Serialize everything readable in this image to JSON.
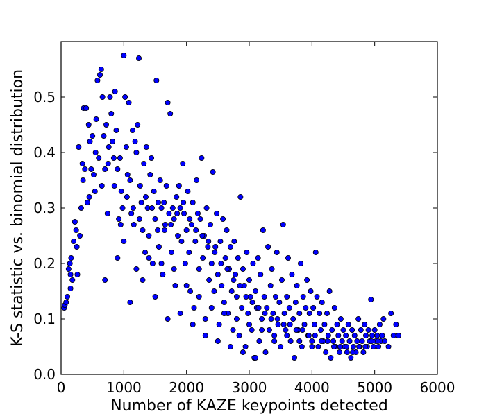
{
  "chart_data": {
    "type": "scatter",
    "title": "",
    "xlabel": "Number of KAZE keypoints detected",
    "ylabel": "K-S statistic vs. binomial distribution",
    "xlim": [
      0,
      6000
    ],
    "ylim": [
      0,
      0.6
    ],
    "xticks": [
      0,
      1000,
      2000,
      3000,
      4000,
      5000,
      6000
    ],
    "yticks": [
      0.0,
      0.1,
      0.2,
      0.3,
      0.4,
      0.5
    ],
    "xtick_labels": [
      "0",
      "1000",
      "2000",
      "3000",
      "4000",
      "5000",
      "6000"
    ],
    "ytick_labels": [
      "0.0",
      "0.1",
      "0.2",
      "0.3",
      "0.4",
      "0.5"
    ],
    "grid": false,
    "marker_color": "#0000ff",
    "marker_edge_color": "#000000",
    "points": [
      [
        50,
        0.12
      ],
      [
        60,
        0.125
      ],
      [
        80,
        0.13
      ],
      [
        100,
        0.14
      ],
      [
        120,
        0.19
      ],
      [
        140,
        0.2
      ],
      [
        150,
        0.155
      ],
      [
        160,
        0.21
      ],
      [
        180,
        0.17
      ],
      [
        200,
        0.24
      ],
      [
        220,
        0.275
      ],
      [
        240,
        0.26
      ],
      [
        260,
        0.18
      ],
      [
        280,
        0.41
      ],
      [
        300,
        0.25
      ],
      [
        320,
        0.3
      ],
      [
        340,
        0.38
      ],
      [
        360,
        0.48
      ],
      [
        380,
        0.37
      ],
      [
        400,
        0.48
      ],
      [
        420,
        0.31
      ],
      [
        440,
        0.45
      ],
      [
        460,
        0.42
      ],
      [
        480,
        0.37
      ],
      [
        500,
        0.43
      ],
      [
        520,
        0.36
      ],
      [
        540,
        0.33
      ],
      [
        560,
        0.46
      ],
      [
        580,
        0.53
      ],
      [
        600,
        0.39
      ],
      [
        620,
        0.54
      ],
      [
        640,
        0.55
      ],
      [
        660,
        0.5
      ],
      [
        680,
        0.43
      ],
      [
        700,
        0.37
      ],
      [
        720,
        0.45
      ],
      [
        740,
        0.29
      ],
      [
        760,
        0.41
      ],
      [
        780,
        0.5
      ],
      [
        800,
        0.47
      ],
      [
        820,
        0.42
      ],
      [
        840,
        0.39
      ],
      [
        860,
        0.51
      ],
      [
        880,
        0.44
      ],
      [
        900,
        0.37
      ],
      [
        920,
        0.28
      ],
      [
        940,
        0.39
      ],
      [
        960,
        0.33
      ],
      [
        980,
        0.3
      ],
      [
        1000,
        0.575
      ],
      [
        1020,
        0.5
      ],
      [
        1040,
        0.41
      ],
      [
        1060,
        0.36
      ],
      [
        1080,
        0.49
      ],
      [
        1100,
        0.35
      ],
      [
        1120,
        0.29
      ],
      [
        1140,
        0.44
      ],
      [
        1160,
        0.27
      ],
      [
        1180,
        0.42
      ],
      [
        1200,
        0.4
      ],
      [
        1220,
        0.45
      ],
      [
        1240,
        0.57
      ],
      [
        1260,
        0.34
      ],
      [
        1280,
        0.31
      ],
      [
        1300,
        0.26
      ],
      [
        1320,
        0.38
      ],
      [
        1340,
        0.22
      ],
      [
        1360,
        0.41
      ],
      [
        1380,
        0.3
      ],
      [
        1400,
        0.25
      ],
      [
        1420,
        0.36
      ],
      [
        1440,
        0.39
      ],
      [
        1460,
        0.2
      ],
      [
        1480,
        0.33
      ],
      [
        1500,
        0.28
      ],
      [
        1520,
        0.53
      ],
      [
        1540,
        0.26
      ],
      [
        1560,
        0.23
      ],
      [
        1580,
        0.35
      ],
      [
        1600,
        0.3
      ],
      [
        1620,
        0.18
      ],
      [
        1640,
        0.31
      ],
      [
        1660,
        0.27
      ],
      [
        1680,
        0.34
      ],
      [
        1700,
        0.49
      ],
      [
        1720,
        0.29
      ],
      [
        1740,
        0.47
      ],
      [
        1760,
        0.22
      ],
      [
        1780,
        0.3
      ],
      [
        1800,
        0.28
      ],
      [
        1820,
        0.16
      ],
      [
        1840,
        0.32
      ],
      [
        1860,
        0.25
      ],
      [
        1880,
        0.34
      ],
      [
        1900,
        0.3
      ],
      [
        1920,
        0.24
      ],
      [
        1940,
        0.38
      ],
      [
        1960,
        0.29
      ],
      [
        1980,
        0.2
      ],
      [
        2000,
        0.26
      ],
      [
        2020,
        0.33
      ],
      [
        2040,
        0.22
      ],
      [
        2060,
        0.15
      ],
      [
        2080,
        0.27
      ],
      [
        2100,
        0.31
      ],
      [
        2120,
        0.12
      ],
      [
        2140,
        0.24
      ],
      [
        2160,
        0.35
      ],
      [
        2180,
        0.29
      ],
      [
        2200,
        0.19
      ],
      [
        2220,
        0.28
      ],
      [
        2240,
        0.39
      ],
      [
        2260,
        0.21
      ],
      [
        2280,
        0.25
      ],
      [
        2300,
        0.1
      ],
      [
        2320,
        0.3
      ],
      [
        2340,
        0.23
      ],
      [
        2360,
        0.17
      ],
      [
        2380,
        0.27
      ],
      [
        2400,
        0.2
      ],
      [
        2420,
        0.365
      ],
      [
        2440,
        0.15
      ],
      [
        2460,
        0.23
      ],
      [
        2480,
        0.29
      ],
      [
        2500,
        0.18
      ],
      [
        2520,
        0.09
      ],
      [
        2540,
        0.24
      ],
      [
        2560,
        0.16
      ],
      [
        2580,
        0.28
      ],
      [
        2600,
        0.13
      ],
      [
        2620,
        0.21
      ],
      [
        2640,
        0.26
      ],
      [
        2660,
        0.11
      ],
      [
        2680,
        0.19
      ],
      [
        2700,
        0.23
      ],
      [
        2720,
        0.15
      ],
      [
        2740,
        0.08
      ],
      [
        2760,
        0.24
      ],
      [
        2780,
        0.18
      ],
      [
        2800,
        0.14
      ],
      [
        2820,
        0.21
      ],
      [
        2840,
        0.07
      ],
      [
        2860,
        0.32
      ],
      [
        2880,
        0.12
      ],
      [
        2900,
        0.19
      ],
      [
        2920,
        0.16
      ],
      [
        2940,
        0.05
      ],
      [
        2960,
        0.22
      ],
      [
        2980,
        0.11
      ],
      [
        3000,
        0.17
      ],
      [
        3020,
        0.14
      ],
      [
        3040,
        0.08
      ],
      [
        3060,
        0.2
      ],
      [
        3080,
        0.03
      ],
      [
        3100,
        0.15
      ],
      [
        3120,
        0.12
      ],
      [
        3140,
        0.21
      ],
      [
        3160,
        0.06
      ],
      [
        3180,
        0.18
      ],
      [
        3200,
        0.1
      ],
      [
        3220,
        0.26
      ],
      [
        3240,
        0.14
      ],
      [
        3260,
        0.04
      ],
      [
        3280,
        0.12
      ],
      [
        3300,
        0.23
      ],
      [
        3320,
        0.08
      ],
      [
        3340,
        0.16
      ],
      [
        3360,
        0.19
      ],
      [
        3380,
        0.11
      ],
      [
        3400,
        0.06
      ],
      [
        3420,
        0.14
      ],
      [
        3440,
        0.22
      ],
      [
        3460,
        0.09
      ],
      [
        3480,
        0.13
      ],
      [
        3500,
        0.05
      ],
      [
        3520,
        0.17
      ],
      [
        3540,
        0.27
      ],
      [
        3560,
        0.11
      ],
      [
        3580,
        0.08
      ],
      [
        3600,
        0.14
      ],
      [
        3620,
        0.21
      ],
      [
        3640,
        0.12
      ],
      [
        3660,
        0.06
      ],
      [
        3680,
        0.18
      ],
      [
        3700,
        0.1
      ],
      [
        3720,
        0.03
      ],
      [
        3740,
        0.13
      ],
      [
        3760,
        0.16
      ],
      [
        3780,
        0.08
      ],
      [
        3800,
        0.11
      ],
      [
        3820,
        0.2
      ],
      [
        3840,
        0.05
      ],
      [
        3860,
        0.14
      ],
      [
        3880,
        0.09
      ],
      [
        3900,
        0.12
      ],
      [
        3920,
        0.17
      ],
      [
        3940,
        0.07
      ],
      [
        3960,
        0.11
      ],
      [
        3980,
        0.15
      ],
      [
        4000,
        0.06
      ],
      [
        4020,
        0.12
      ],
      [
        4040,
        0.09
      ],
      [
        4060,
        0.22
      ],
      [
        4080,
        0.14
      ],
      [
        4100,
        0.05
      ],
      [
        4120,
        0.11
      ],
      [
        4140,
        0.08
      ],
      [
        4160,
        0.13
      ],
      [
        4180,
        0.06
      ],
      [
        4200,
        0.09
      ],
      [
        4220,
        0.04
      ],
      [
        4240,
        0.11
      ],
      [
        4260,
        0.07
      ],
      [
        4280,
        0.15
      ],
      [
        4300,
        0.03
      ],
      [
        4320,
        0.08
      ],
      [
        4340,
        0.06
      ],
      [
        4360,
        0.12
      ],
      [
        4380,
        0.05
      ],
      [
        4400,
        0.09
      ],
      [
        4420,
        0.07
      ],
      [
        4440,
        0.04
      ],
      [
        4460,
        0.1
      ],
      [
        4480,
        0.06
      ],
      [
        4500,
        0.08
      ],
      [
        4520,
        0.05
      ],
      [
        4540,
        0.07
      ],
      [
        4560,
        0.04
      ],
      [
        4580,
        0.09
      ],
      [
        4600,
        0.06
      ],
      [
        4620,
        0.03
      ],
      [
        4640,
        0.08
      ],
      [
        4660,
        0.05
      ],
      [
        4680,
        0.07
      ],
      [
        4700,
        0.04
      ],
      [
        4720,
        0.06
      ],
      [
        4740,
        0.1
      ],
      [
        4760,
        0.05
      ],
      [
        4780,
        0.08
      ],
      [
        4800,
        0.06
      ],
      [
        4820,
        0.04
      ],
      [
        4840,
        0.09
      ],
      [
        4860,
        0.07
      ],
      [
        4880,
        0.05
      ],
      [
        4900,
        0.08
      ],
      [
        4920,
        0.06
      ],
      [
        4940,
        0.135
      ],
      [
        4960,
        0.07
      ],
      [
        4980,
        0.05
      ],
      [
        5000,
        0.08
      ],
      [
        5020,
        0.06
      ],
      [
        5040,
        0.07
      ],
      [
        5060,
        0.05
      ],
      [
        5080,
        0.09
      ],
      [
        5100,
        0.06
      ],
      [
        5120,
        0.07
      ],
      [
        5140,
        0.1
      ],
      [
        5160,
        0.06
      ],
      [
        5220,
        0.05
      ],
      [
        5260,
        0.11
      ],
      [
        5300,
        0.07
      ],
      [
        5340,
        0.09
      ],
      [
        5380,
        0.07
      ],
      [
        150,
        0.18
      ],
      [
        250,
        0.23
      ],
      [
        350,
        0.35
      ],
      [
        450,
        0.32
      ],
      [
        550,
        0.4
      ],
      [
        650,
        0.34
      ],
      [
        750,
        0.38
      ],
      [
        850,
        0.34
      ],
      [
        950,
        0.27
      ],
      [
        1050,
        0.32
      ],
      [
        1150,
        0.3
      ],
      [
        1250,
        0.28
      ],
      [
        1350,
        0.32
      ],
      [
        1450,
        0.3
      ],
      [
        1550,
        0.31
      ],
      [
        1650,
        0.26
      ],
      [
        1750,
        0.27
      ],
      [
        1850,
        0.29
      ],
      [
        1950,
        0.31
      ],
      [
        2050,
        0.28
      ],
      [
        2150,
        0.26
      ],
      [
        2250,
        0.25
      ],
      [
        2350,
        0.24
      ],
      [
        2450,
        0.22
      ],
      [
        2550,
        0.2
      ],
      [
        2650,
        0.19
      ],
      [
        2750,
        0.17
      ],
      [
        2850,
        0.16
      ],
      [
        2950,
        0.14
      ],
      [
        3050,
        0.13
      ],
      [
        3150,
        0.12
      ],
      [
        3250,
        0.11
      ],
      [
        3350,
        0.1
      ],
      [
        3450,
        0.1
      ],
      [
        3550,
        0.09
      ],
      [
        3650,
        0.09
      ],
      [
        3750,
        0.08
      ],
      [
        3850,
        0.08
      ],
      [
        3950,
        0.07
      ],
      [
        4050,
        0.07
      ],
      [
        4150,
        0.06
      ],
      [
        4250,
        0.06
      ],
      [
        4350,
        0.05
      ],
      [
        4450,
        0.05
      ],
      [
        4550,
        0.05
      ],
      [
        4650,
        0.04
      ],
      [
        4750,
        0.05
      ],
      [
        4850,
        0.05
      ],
      [
        4950,
        0.06
      ],
      [
        5050,
        0.06
      ],
      [
        700,
        0.17
      ],
      [
        900,
        0.21
      ],
      [
        1100,
        0.13
      ],
      [
        1300,
        0.17
      ],
      [
        1500,
        0.14
      ],
      [
        1700,
        0.1
      ],
      [
        1900,
        0.11
      ],
      [
        2100,
        0.09
      ],
      [
        2300,
        0.07
      ],
      [
        2500,
        0.06
      ],
      [
        2700,
        0.05
      ],
      [
        2900,
        0.04
      ],
      [
        3100,
        0.03
      ],
      [
        1000,
        0.24
      ],
      [
        1200,
        0.19
      ],
      [
        1400,
        0.21
      ],
      [
        1600,
        0.2
      ],
      [
        1800,
        0.19
      ],
      [
        2000,
        0.16
      ],
      [
        2200,
        0.14
      ],
      [
        2400,
        0.12
      ],
      [
        2600,
        0.11
      ],
      [
        2800,
        0.1
      ],
      [
        3000,
        0.09
      ],
      [
        3200,
        0.08
      ],
      [
        3400,
        0.07
      ],
      [
        3600,
        0.07
      ],
      [
        3800,
        0.06
      ],
      [
        4000,
        0.05
      ]
    ]
  }
}
